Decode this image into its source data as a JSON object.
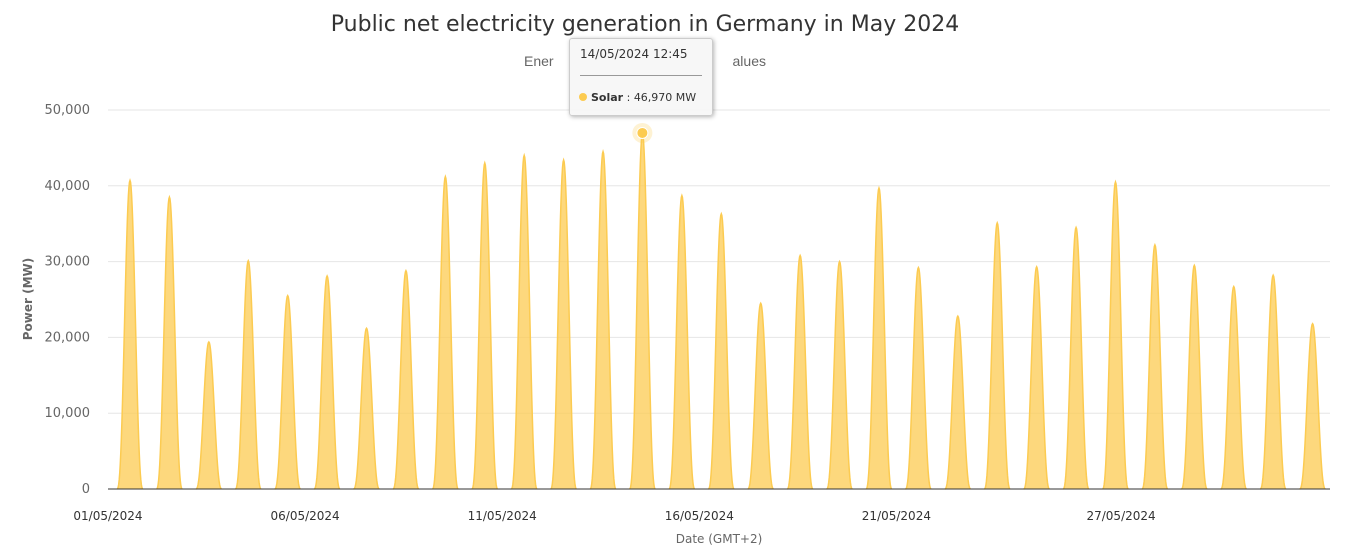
{
  "chart_data": {
    "type": "area",
    "title": "Public net electricity generation in Germany in May 2024",
    "subtitle": "Energy-Charts.info - last update: values",
    "subtitle_visible": "Ener                                              alues",
    "xlabel": "Date (GMT+2)",
    "ylabel": "Power (MW)",
    "ylim": [
      0,
      50000
    ],
    "yticks": [
      0,
      10000,
      20000,
      30000,
      40000,
      50000
    ],
    "ytick_labels": [
      "0",
      "10,000",
      "20,000",
      "30,000",
      "40,000",
      "50,000"
    ],
    "xtick_labels": [
      "01/05/2024",
      "06/05/2024",
      "11/05/2024",
      "16/05/2024",
      "21/05/2024",
      "27/05/2024"
    ],
    "xtick_days": [
      1,
      6,
      11,
      16,
      21,
      26.7
    ],
    "grid": true,
    "legend": "none",
    "series": [
      {
        "name": "Solar",
        "color": "#fccb51",
        "daily_peaks_mw": [
          40700,
          38500,
          19400,
          30100,
          25500,
          28100,
          21200,
          28800,
          41200,
          43000,
          44000,
          43400,
          44500,
          46970,
          38700,
          36300,
          24500,
          30800,
          30000,
          39700,
          29200,
          22800,
          35100,
          29300,
          34500,
          40500,
          32200,
          29500,
          26700,
          28200,
          21800
        ]
      }
    ],
    "tooltip": {
      "time": "14/05/2024 12:45",
      "series": "Solar",
      "value": "46,970 MW",
      "day": 14,
      "hour": 12.75
    }
  }
}
